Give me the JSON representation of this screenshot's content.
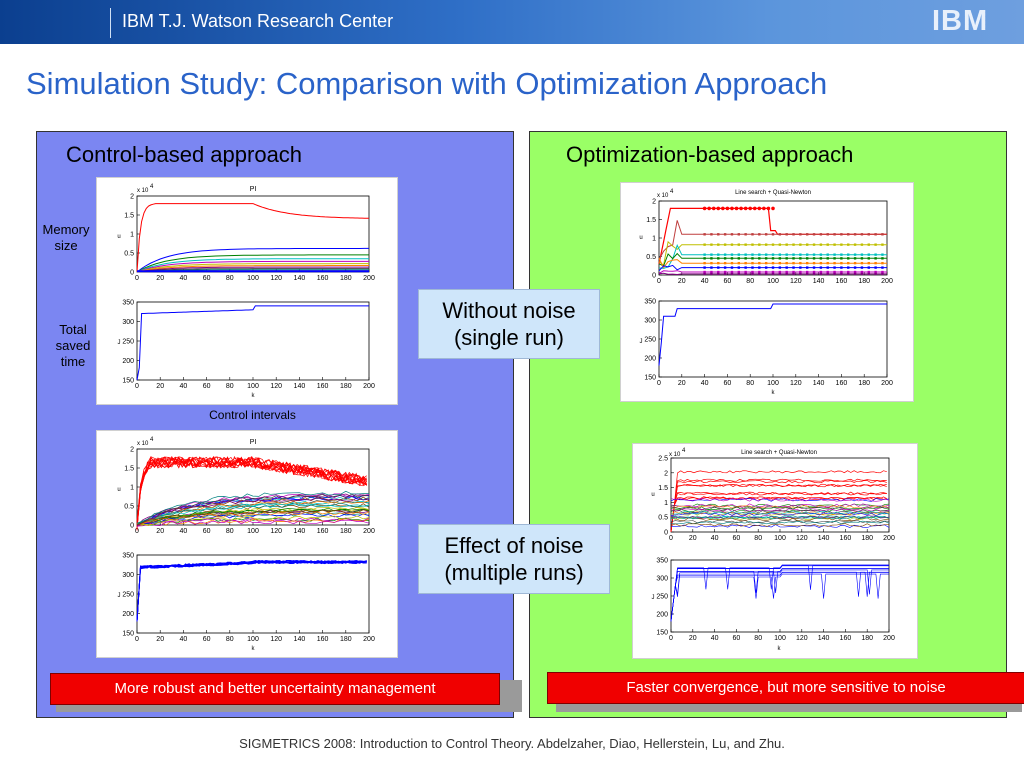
{
  "header": {
    "title": "IBM T.J. Watson Research Center",
    "logo": "IBM"
  },
  "slide": {
    "title": "Simulation Study: Comparison with Optimization Approach"
  },
  "left_panel": {
    "heading": "Control-based approach",
    "label_memory": "Memory size",
    "label_time": "Total saved time",
    "label_intervals": "Control intervals",
    "bottom_text": "More robust and better uncertainty management",
    "color": "#7b86f2"
  },
  "right_panel": {
    "heading": "Optimization-based approach",
    "bottom_text": "Faster convergence, but more sensitive to noise",
    "color": "#9aff66"
  },
  "callouts": {
    "no_noise": "Without noise (single run)",
    "noise": "Effect of noise (multiple runs)"
  },
  "plot_labels": {
    "pi": "PI",
    "qn": "Line search + Quasi-Newton",
    "scale": "x 10",
    "exp": "4",
    "u": "u",
    "j": "J",
    "k": "k",
    "x_ticks": [
      "0",
      "20",
      "40",
      "60",
      "80",
      "100",
      "120",
      "140",
      "160",
      "180",
      "200"
    ],
    "u_ticks": [
      "0",
      "0.5",
      "1",
      "1.5",
      "2"
    ],
    "u_ticks_noise": [
      "0",
      "0.5",
      "1",
      "1.5",
      "2",
      "2.5"
    ],
    "j_ticks": [
      "150",
      "200",
      "250",
      "300",
      "350"
    ]
  },
  "footer": "SIGMETRICS 2008: Introduction to Control Theory. Abdelzaher, Diao, Hellerstein, Lu, and Zhu."
}
